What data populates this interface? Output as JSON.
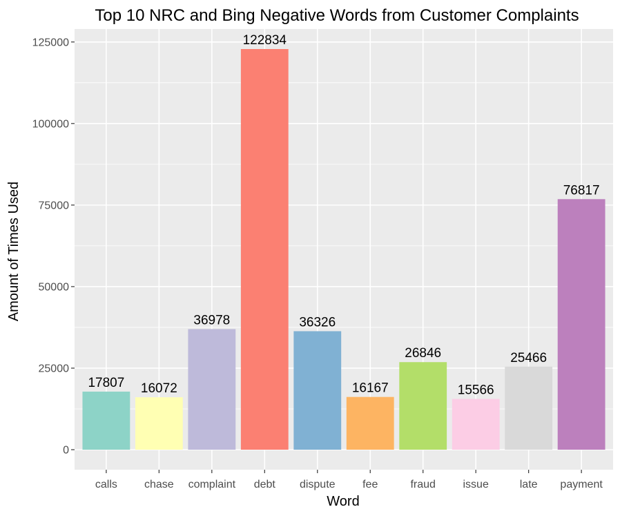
{
  "chart_data": {
    "type": "bar",
    "title": "Top 10 NRC and Bing Negative Words from Customer Complaints",
    "xlabel": "Word",
    "ylabel": "Amount of Times Used",
    "categories": [
      "calls",
      "chase",
      "complaint",
      "debt",
      "dispute",
      "fee",
      "fraud",
      "issue",
      "late",
      "payment"
    ],
    "values": [
      17807,
      16072,
      36978,
      122834,
      36326,
      16167,
      26846,
      15566,
      25466,
      76817
    ],
    "data_labels": [
      "17807",
      "16072",
      "36978",
      "122834",
      "36326",
      "16167",
      "26846",
      "15566",
      "25466",
      "76817"
    ],
    "colors": [
      "#8DD3C7",
      "#FFFFB3",
      "#BEBADA",
      "#FB8072",
      "#80B1D3",
      "#FDB462",
      "#B3DE69",
      "#FCCDE5",
      "#D9D9D9",
      "#BC80BD"
    ],
    "yticks": [
      0,
      25000,
      50000,
      75000,
      100000,
      125000
    ],
    "ytick_labels": [
      "0",
      "25000",
      "50000",
      "75000",
      "100000",
      "125000"
    ],
    "ylim": [
      -6142,
      128976
    ],
    "grid": true,
    "panel_background": "#EBEBEB",
    "gridline_color": "#FFFFFF",
    "legend": "none"
  }
}
